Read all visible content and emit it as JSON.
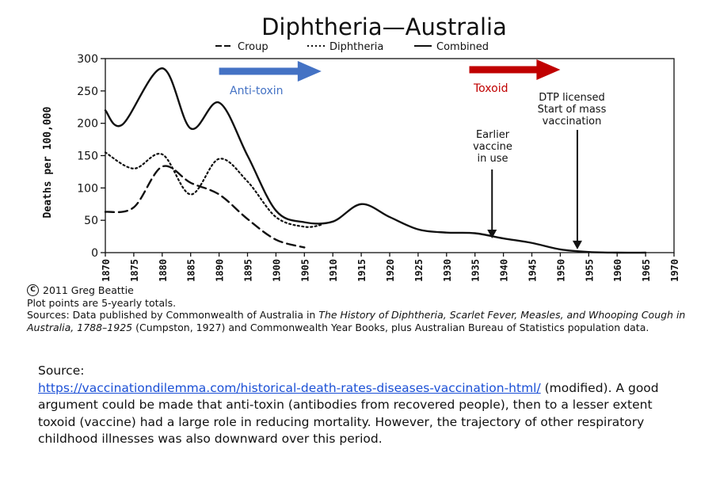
{
  "chart_data": {
    "type": "line",
    "title": "Diphtheria—Australia",
    "xlabel": "",
    "ylabel": "Deaths per 100,000",
    "xlim": [
      1870,
      1970
    ],
    "ylim": [
      0,
      300
    ],
    "xticks": [
      1870,
      1875,
      1880,
      1885,
      1890,
      1895,
      1900,
      1905,
      1910,
      1915,
      1920,
      1925,
      1930,
      1935,
      1940,
      1945,
      1950,
      1955,
      1960,
      1965,
      1970
    ],
    "xtick_labels": [
      "1870",
      "1875",
      "1880",
      "1885",
      "1890",
      "1895",
      "1900",
      "1905",
      "1910",
      "1915",
      "1920",
      "1925",
      "1930",
      "1935",
      "1940",
      "1945",
      "1950",
      "1955",
      "1960",
      "1965",
      "1970"
    ],
    "yticks": [
      0,
      50,
      100,
      150,
      200,
      250,
      300
    ],
    "ytick_labels": [
      "0",
      "50",
      "100",
      "150",
      "200",
      "250",
      "300"
    ],
    "grid": false,
    "legend_position": "top-center",
    "series": [
      {
        "name": "Croup",
        "style": "dash",
        "x": [
          1870,
          1875,
          1880,
          1885,
          1890,
          1895,
          1900,
          1905
        ],
        "y": [
          63,
          70,
          133,
          108,
          90,
          52,
          20,
          8
        ]
      },
      {
        "name": "Diphtheria",
        "style": "dot",
        "x": [
          1870,
          1875,
          1880,
          1885,
          1890,
          1895,
          1900,
          1905,
          1908
        ],
        "y": [
          155,
          130,
          152,
          90,
          145,
          110,
          55,
          40,
          43
        ]
      },
      {
        "name": "Combined",
        "style": "solid",
        "x": [
          1870,
          1873,
          1880,
          1885,
          1890,
          1895,
          1900,
          1905,
          1910,
          1915,
          1920,
          1925,
          1930,
          1935,
          1940,
          1945,
          1950,
          1955,
          1960,
          1965
        ],
        "y": [
          220,
          198,
          285,
          192,
          232,
          150,
          65,
          47,
          48,
          75,
          55,
          36,
          31,
          30,
          22,
          15,
          5,
          1,
          0,
          0
        ]
      }
    ],
    "annotations": {
      "antitoxin": {
        "label": "Anti-toxin",
        "x_from": 1890,
        "x_to": 1908,
        "color": "#4472c4"
      },
      "toxoid": {
        "label": "Toxoid",
        "x_from": 1934,
        "x_to": 1950,
        "color": "#c00000"
      },
      "earlier": {
        "lines": [
          "Earlier",
          "vaccine",
          "in use"
        ],
        "x": 1938
      },
      "dtp": {
        "lines": [
          "DTP licensed",
          "Start of mass",
          "vaccination"
        ],
        "x": 1953
      }
    }
  },
  "credit": {
    "copyright_symbol": "C",
    "copyright": "2011 Greg Beattie",
    "plot_note": "Plot points are 5-yearly totals.",
    "sources_prefix": "Sources: Data published by Commonwealth of Australia in ",
    "sources_title": "The History of Diphtheria, Scarlet Fever, Measles, and Whooping Cough in Australia, 1788–1925",
    "sources_suffix": " (Cumpston, 1927) and Commonwealth Year Books, plus Australian Bureau of Statistics population data."
  },
  "note": {
    "source_label": "Source:",
    "url": "https://vaccinationdilemma.com/historical-death-rates-diseases-vaccination-html/",
    "text": " (modified). A good argument could be made that anti-toxin (antibodies from recovered people), then to a lesser extent toxoid (vaccine) had a large role in reducing mortality. However, the trajectory of other respiratory childhood illnesses was also downward over this period."
  }
}
